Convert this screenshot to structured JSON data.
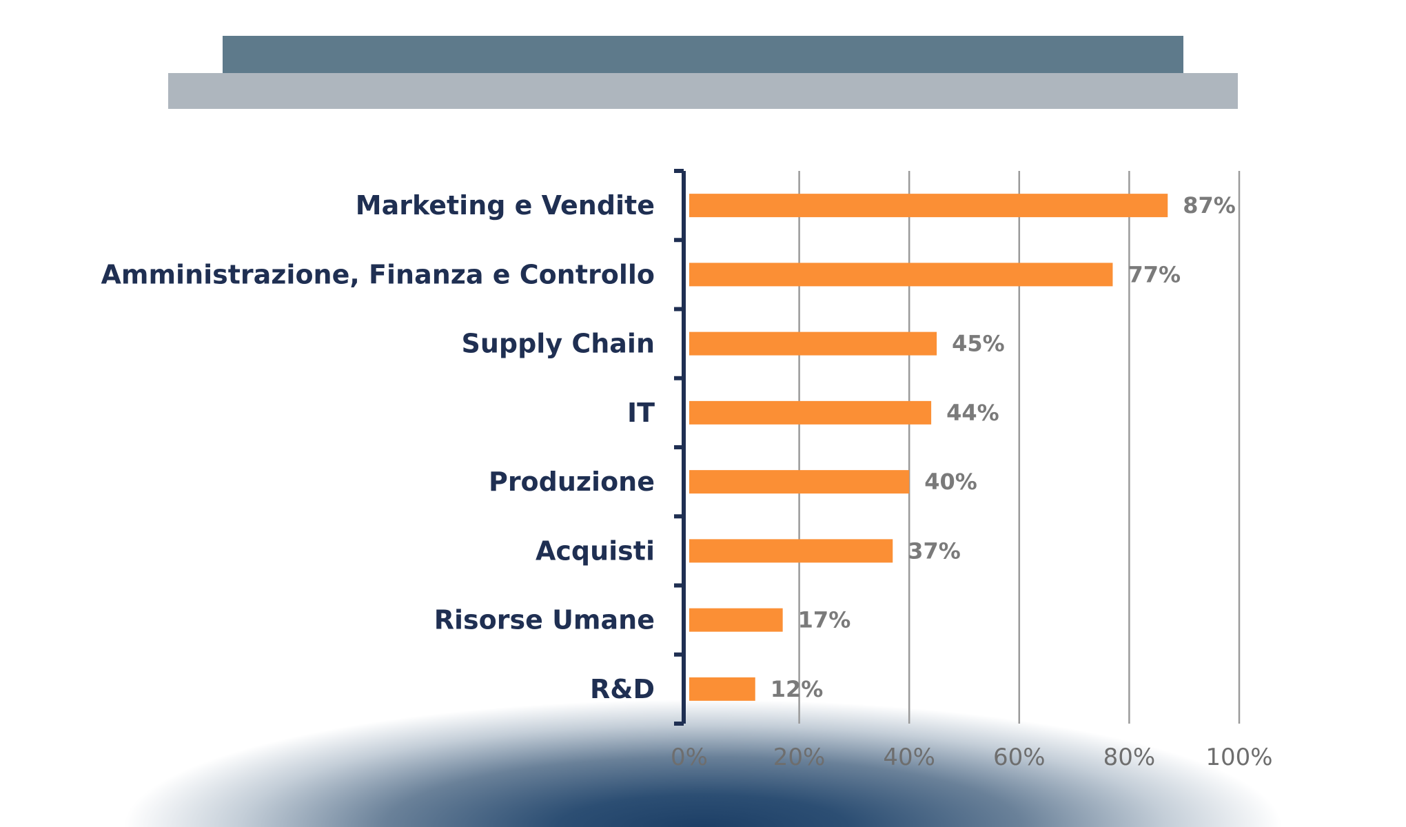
{
  "colors": {
    "bar": "#fb8f35",
    "axis": "#1f2f52",
    "grid": "#9a9a9a",
    "banner_top": "#5e7a8b",
    "banner_bottom": "#aeb6be"
  },
  "chart_data": {
    "type": "bar",
    "orientation": "horizontal",
    "categories": [
      "Marketing e Vendite",
      "Amministrazione, Finanza e Controllo",
      "Supply Chain",
      "IT",
      "Produzione",
      "Acquisti",
      "Risorse Umane",
      "R&D"
    ],
    "values": [
      87,
      77,
      45,
      44,
      40,
      37,
      17,
      12
    ],
    "value_labels": [
      "87%",
      "77%",
      "45%",
      "44%",
      "40%",
      "37%",
      "17%",
      "12%"
    ],
    "xlim": [
      0,
      100
    ],
    "ticks": [
      0,
      20,
      40,
      60,
      80,
      100
    ],
    "tick_labels": [
      "0%",
      "20%",
      "40%",
      "60%",
      "80%",
      "100%"
    ],
    "grid": true,
    "legend": "none"
  }
}
